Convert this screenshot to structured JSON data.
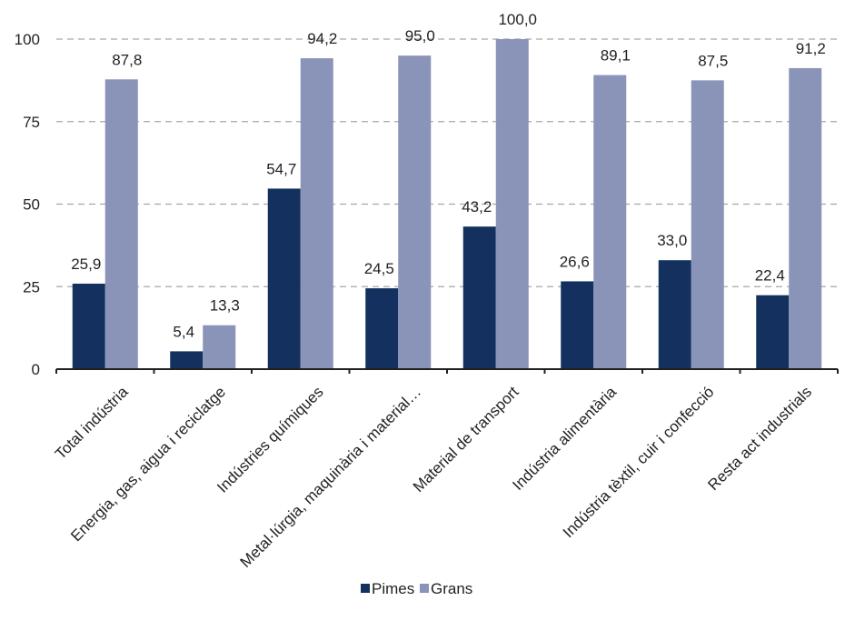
{
  "chart_data": {
    "type": "bar",
    "categories": [
      "Total indústria",
      "Energia, gas, aigua i reciclatge",
      "Indústries químiques",
      "Metal·lúrgia, maquinària i material…",
      "Material de transport",
      "Indústria alimentària",
      "Indústria tèxtil, cuir i confecció",
      "Resta act industrials"
    ],
    "series": [
      {
        "name": "Pimes",
        "color": "#13305f",
        "values": [
          25.9,
          5.4,
          54.7,
          24.5,
          43.2,
          26.6,
          33.0,
          22.4
        ],
        "labels": [
          "25,9",
          "5,4",
          "54,7",
          "24,5",
          "43,2",
          "26,6",
          "33,0",
          "22,4"
        ]
      },
      {
        "name": "Grans",
        "color": "#8a93b8",
        "values": [
          87.8,
          13.3,
          94.2,
          95.0,
          100.0,
          89.1,
          87.5,
          91.2
        ],
        "labels": [
          "87,8",
          "13,3",
          "94,2",
          "95,0",
          "100,0",
          "89,1",
          "87,5",
          "91,2"
        ]
      }
    ],
    "yticks": [
      "0",
      "25",
      "50",
      "75",
      "100"
    ],
    "ylim": [
      0,
      100
    ],
    "grid": true,
    "legend": "bottom-center"
  }
}
